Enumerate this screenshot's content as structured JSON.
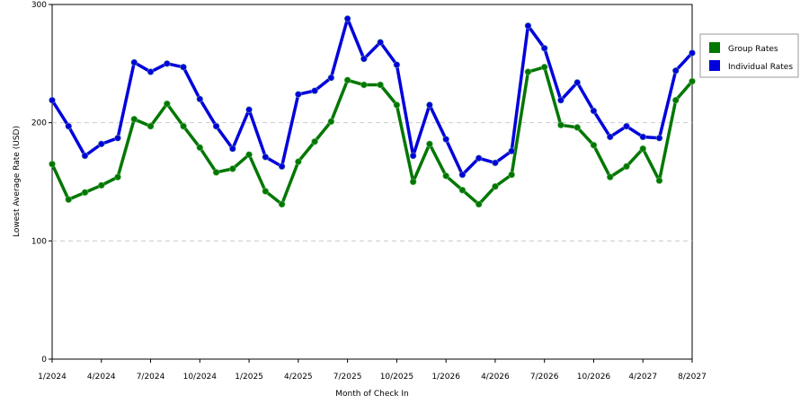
{
  "chart_data": {
    "type": "line",
    "x_label": "Month of Check In",
    "y_label": "Lowest Average Rate (USD)",
    "categories": [
      "1/2024",
      null,
      null,
      "4/2024",
      null,
      null,
      "7/2024",
      null,
      null,
      "10/2024",
      null,
      null,
      "1/2025",
      null,
      null,
      "4/2025",
      null,
      null,
      "7/2025",
      null,
      null,
      "10/2025",
      null,
      null,
      "1/2026",
      null,
      null,
      "4/2026",
      null,
      null,
      "7/2026",
      null,
      null,
      "10/2026",
      null,
      null,
      "4/2027",
      null,
      null,
      "8/2027"
    ],
    "series": [
      {
        "name": "Group Rates",
        "color": "#007700",
        "values": [
          165,
          135,
          141,
          147,
          154,
          203,
          197,
          216,
          197,
          179,
          158,
          161,
          173,
          142,
          131,
          167,
          184,
          201,
          236,
          232,
          232,
          215,
          150,
          182,
          155,
          143,
          131,
          146,
          156,
          243,
          247,
          198,
          196,
          181,
          154,
          163,
          178,
          151,
          219,
          235
        ]
      },
      {
        "name": "Individual Rates",
        "color": "#0000dd",
        "values": [
          219,
          197,
          172,
          182,
          187,
          251,
          243,
          250,
          247,
          220,
          197,
          178,
          211,
          171,
          163,
          224,
          227,
          238,
          288,
          254,
          268,
          249,
          172,
          215,
          186,
          156,
          170,
          166,
          176,
          282,
          263,
          219,
          234,
          210,
          188,
          197,
          188,
          187,
          244,
          259
        ]
      }
    ],
    "ylim": [
      0,
      300
    ],
    "yticks": [
      0,
      100,
      200,
      300
    ],
    "grid": true,
    "legend": "right"
  }
}
